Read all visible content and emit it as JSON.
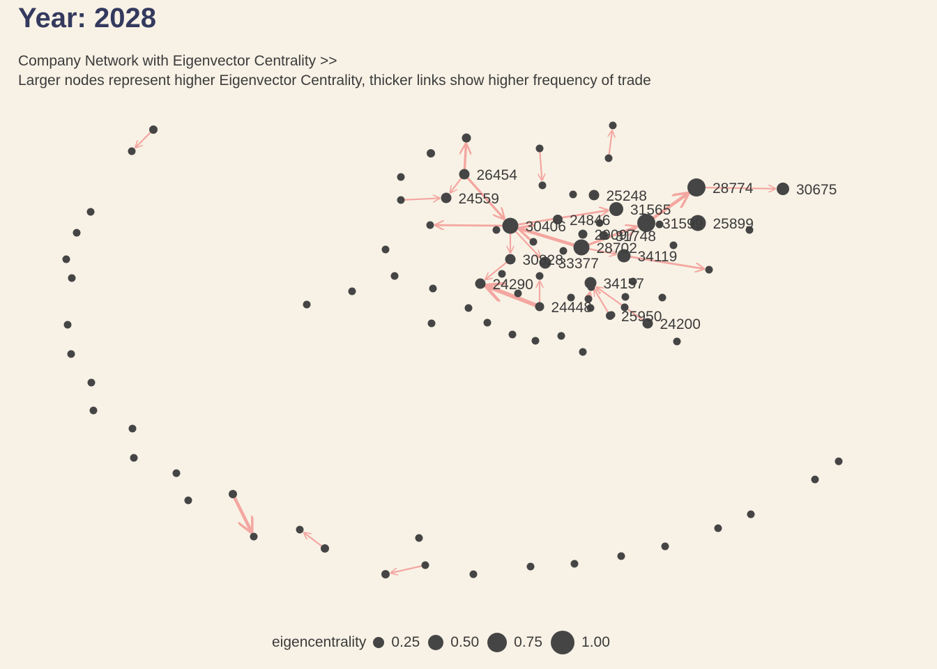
{
  "title": "Year: 2028",
  "subtitle_line1": "Company Network with Eigenvector Centrality >>",
  "subtitle_line2": "Larger nodes represent higher Eigenvector Centrality, thicker links show higher frequency of trade",
  "colors": {
    "background": "#f8f2e6",
    "node": "#454545",
    "edge": "#f4a6a0",
    "title": "#343a5e",
    "text": "#3b3b3b"
  },
  "legend": {
    "title": "eigencentrality",
    "items": [
      {
        "label": "0.25",
        "value": 0.25
      },
      {
        "label": "0.50",
        "value": 0.5
      },
      {
        "label": "0.75",
        "value": 0.75
      },
      {
        "label": "1.00",
        "value": 1.0
      }
    ]
  },
  "nodes": [
    {
      "id": "n28774",
      "label": "28774",
      "size": 1.0
    },
    {
      "id": "n31599",
      "label": "31599",
      "size": 1.0
    },
    {
      "id": "n25899",
      "label": "25899",
      "size": 0.85
    },
    {
      "id": "n30675",
      "label": "30675",
      "size": 0.6
    },
    {
      "id": "n30406",
      "label": "30406",
      "size": 0.85
    },
    {
      "id": "n28702",
      "label": "28702",
      "size": 0.85
    },
    {
      "id": "n31565",
      "label": "31565",
      "size": 0.7
    },
    {
      "id": "n34119",
      "label": "34119",
      "size": 0.65
    },
    {
      "id": "n34157",
      "label": "34157",
      "size": 0.55
    },
    {
      "id": "n25248",
      "label": "25248",
      "size": 0.45
    },
    {
      "id": "n24846",
      "label": "24846",
      "size": 0.4
    },
    {
      "id": "n29097",
      "label": "29097",
      "size": 0.35
    },
    {
      "id": "n31748",
      "label": "31748",
      "size": 0.35
    },
    {
      "id": "n30828",
      "label": "30828",
      "size": 0.45
    },
    {
      "id": "n33377",
      "label": "33377",
      "size": 0.55
    },
    {
      "id": "n24290",
      "label": "24290",
      "size": 0.45
    },
    {
      "id": "n24448",
      "label": "24448",
      "size": 0.35
    },
    {
      "id": "n25950",
      "label": "25950",
      "size": 0.3
    },
    {
      "id": "n24200",
      "label": "24200",
      "size": 0.45
    },
    {
      "id": "n26454",
      "label": "26454",
      "size": 0.45
    },
    {
      "id": "n24559",
      "label": "24559",
      "size": 0.45
    },
    {
      "id": "u_a",
      "label": "",
      "size": 0.35
    },
    {
      "id": "u_b",
      "label": "",
      "size": 0.25
    },
    {
      "id": "u_c",
      "label": "",
      "size": 0.25
    },
    {
      "id": "u_d",
      "label": "",
      "size": 0.25
    },
    {
      "id": "u_e",
      "label": "",
      "size": 0.25
    },
    {
      "id": "u_f",
      "label": "",
      "size": 0.3
    },
    {
      "id": "u_g",
      "label": "",
      "size": 0.25
    },
    {
      "id": "u_h",
      "label": "",
      "size": 0.25
    },
    {
      "id": "u_i",
      "label": "",
      "size": 0.25
    },
    {
      "id": "u_j",
      "label": "",
      "size": 0.25
    },
    {
      "id": "u_k",
      "label": "",
      "size": 0.25
    },
    {
      "id": "u_l",
      "label": "",
      "size": 0.3
    },
    {
      "id": "u_m",
      "label": "",
      "size": 0.25
    },
    {
      "id": "u_n",
      "label": "",
      "size": 0.3
    },
    {
      "id": "u_o",
      "label": "",
      "size": 0.25
    },
    {
      "id": "u_p",
      "label": "",
      "size": 0.25
    },
    {
      "id": "u_q",
      "label": "",
      "size": 0.3
    },
    {
      "id": "u_r",
      "label": "",
      "size": 0.25
    },
    {
      "id": "u_s",
      "label": "",
      "size": 0.25
    },
    {
      "id": "u_t",
      "label": "",
      "size": 0.3
    },
    {
      "id": "u_u",
      "label": "",
      "size": 0.25
    },
    {
      "id": "u_v",
      "label": "",
      "size": 0.25
    },
    {
      "id": "u_w",
      "label": "",
      "size": 0.25
    },
    {
      "id": "u_x",
      "label": "",
      "size": 0.25
    },
    {
      "id": "u_y",
      "label": "",
      "size": 0.25
    },
    {
      "id": "u_z",
      "label": "",
      "size": 0.25
    },
    {
      "id": "u_aa",
      "label": "",
      "size": 0.25
    },
    {
      "id": "u_ab",
      "label": "",
      "size": 0.25
    },
    {
      "id": "u_ac",
      "label": "",
      "size": 0.25
    },
    {
      "id": "u_ad",
      "label": "",
      "size": 0.25
    },
    {
      "id": "u_ae",
      "label": "",
      "size": 0.25
    },
    {
      "id": "u_af",
      "label": "",
      "size": 0.25
    },
    {
      "id": "u_ag",
      "label": "",
      "size": 0.25
    },
    {
      "id": "u_ah",
      "label": "",
      "size": 0.25
    },
    {
      "id": "u_ai",
      "label": "",
      "size": 0.25
    },
    {
      "id": "u_aj",
      "label": "",
      "size": 0.25
    },
    {
      "id": "u_ak",
      "label": "",
      "size": 0.25
    },
    {
      "id": "u_al",
      "label": "",
      "size": 0.25
    },
    {
      "id": "u_am",
      "label": "",
      "size": 0.25
    },
    {
      "id": "u_an",
      "label": "",
      "size": 0.25
    },
    {
      "id": "u_ao",
      "label": "",
      "size": 0.25
    },
    {
      "id": "u_ap",
      "label": "",
      "size": 0.25
    },
    {
      "id": "u_aq",
      "label": "",
      "size": 0.25
    },
    {
      "id": "u_ar",
      "label": "",
      "size": 0.25
    },
    {
      "id": "u_as",
      "label": "",
      "size": 0.25
    },
    {
      "id": "u_at",
      "label": "",
      "size": 0.25
    },
    {
      "id": "u_au",
      "label": "",
      "size": 0.25
    },
    {
      "id": "u_av",
      "label": "",
      "size": 0.25
    },
    {
      "id": "u_aw",
      "label": "",
      "size": 0.25
    },
    {
      "id": "u_ax",
      "label": "",
      "size": 0.25
    },
    {
      "id": "u_ay",
      "label": "",
      "size": 0.25
    },
    {
      "id": "u_az",
      "label": "",
      "size": 0.25
    },
    {
      "id": "u_ba",
      "label": "",
      "size": 0.25
    },
    {
      "id": "u_bb",
      "label": "",
      "size": 0.25
    },
    {
      "id": "u_bc",
      "label": "",
      "size": 0.25
    },
    {
      "id": "u_bd",
      "label": "",
      "size": 0.25
    },
    {
      "id": "u_be",
      "label": "",
      "size": 0.25
    },
    {
      "id": "u_bf",
      "label": "",
      "size": 0.25
    },
    {
      "id": "u_bg",
      "label": "",
      "size": 0.25
    },
    {
      "id": "u_bh",
      "label": "",
      "size": 0.25
    },
    {
      "id": "u_bi",
      "label": "",
      "size": 0.25
    },
    {
      "id": "u_bj",
      "label": "",
      "size": 0.25
    },
    {
      "id": "u_bk",
      "label": "",
      "size": 0.25
    },
    {
      "id": "u_bl",
      "label": "",
      "size": 0.25
    },
    {
      "id": "u_bm",
      "label": "",
      "size": 0.25
    },
    {
      "id": "u_bn",
      "label": "",
      "size": 0.25
    },
    {
      "id": "u_bo",
      "label": "",
      "size": 0.25
    },
    {
      "id": "u_bp",
      "label": "",
      "size": 0.25
    },
    {
      "id": "u_bq",
      "label": "",
      "size": 0.25
    },
    {
      "id": "u_br",
      "label": "",
      "size": 0.25
    },
    {
      "id": "u_bs",
      "label": "",
      "size": 0.25
    },
    {
      "id": "u_bt",
      "label": "",
      "size": 0.25
    },
    {
      "id": "u_bu",
      "label": "",
      "size": 0.25
    }
  ],
  "edges": [
    {
      "source": "n28774",
      "target": "n30675",
      "weight": 1
    },
    {
      "source": "n31599",
      "target": "n28774",
      "weight": 3
    },
    {
      "source": "n28702",
      "target": "n31599",
      "weight": 2
    },
    {
      "source": "n28702",
      "target": "n30406",
      "weight": 3
    },
    {
      "source": "n30406",
      "target": "n31565",
      "weight": 1.5
    },
    {
      "source": "n26454",
      "target": "n30406",
      "weight": 2
    },
    {
      "source": "n26454",
      "target": "u_a",
      "weight": 2
    },
    {
      "source": "n26454",
      "target": "n24559",
      "weight": 1
    },
    {
      "source": "u_b",
      "target": "n24559",
      "weight": 1
    },
    {
      "source": "n30406",
      "target": "u_c",
      "weight": 1.5
    },
    {
      "source": "n30406",
      "target": "n30828",
      "weight": 1
    },
    {
      "source": "n30406",
      "target": "n33377",
      "weight": 1
    },
    {
      "source": "n30828",
      "target": "n24290",
      "weight": 1
    },
    {
      "source": "n24448",
      "target": "n24290",
      "weight": 4
    },
    {
      "source": "n24448",
      "target": "u_d",
      "weight": 1
    },
    {
      "source": "n34119",
      "target": "u_e",
      "weight": 1.5
    },
    {
      "source": "n24200",
      "target": "n34157",
      "weight": 1
    },
    {
      "source": "n25950",
      "target": "n34157",
      "weight": 1
    },
    {
      "source": "n28702",
      "target": "n34119",
      "weight": 1
    },
    {
      "source": "u_f",
      "target": "u_g",
      "weight": 1
    },
    {
      "source": "u_h",
      "target": "u_i",
      "weight": 1
    },
    {
      "source": "u_j",
      "target": "u_k",
      "weight": 1
    },
    {
      "source": "u_l",
      "target": "u_m",
      "weight": 3
    },
    {
      "source": "u_n",
      "target": "u_o",
      "weight": 1
    },
    {
      "source": "u_p",
      "target": "u_q",
      "weight": 1
    },
    {
      "source": "u_r",
      "target": "u_s",
      "weight": 1
    }
  ]
}
